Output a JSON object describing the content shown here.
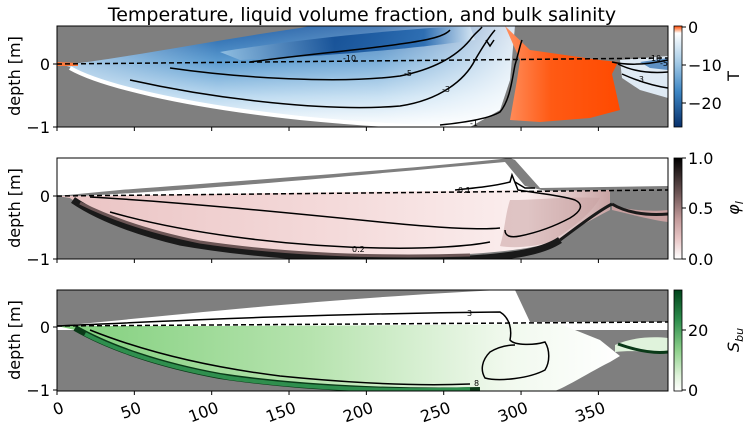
{
  "title": "Temperature, liquid volume fraction, and bulk salinity",
  "x_ticks": [
    "0",
    "50",
    "100",
    "150",
    "200",
    "250",
    "300",
    "350"
  ],
  "colors": {
    "background": "#7f7f7f",
    "temperature_cmap": [
      "#0b3f80",
      "#2f7ec0",
      "#a9cfe8",
      "#ffffff",
      "#ff6a2a",
      "#ff4a00"
    ],
    "liquid_cmap": [
      "#ffffff",
      "#e8b9b9",
      "#b58c8c",
      "#000000"
    ],
    "salinity_cmap": [
      "#ffffff",
      "#9fd89a",
      "#3f9a55",
      "#00441b"
    ]
  },
  "chart_data": [
    {
      "type": "heatmap",
      "name": "temperature",
      "title": "Temperature, liquid volume fraction, and bulk salinity",
      "ylabel": "depth [m]",
      "colorbar_label": "T",
      "xlim": [
        0,
        395
      ],
      "ylim": [
        -1,
        0.6
      ],
      "y_ticks": [
        "0",
        "−1"
      ],
      "colorbar_range": [
        -27,
        0
      ],
      "colorbar_ticks": [
        "0",
        "−10",
        "−20"
      ],
      "contour_labels": [
        "-10",
        "-5",
        "-3",
        "-1",
        "-10",
        "-5",
        "-3"
      ]
    },
    {
      "type": "heatmap",
      "name": "liquid volume fraction",
      "ylabel": "depth [m]",
      "colorbar_label": "φ",
      "colorbar_label_sub": "l",
      "xlim": [
        0,
        395
      ],
      "ylim": [
        -1,
        0.6
      ],
      "y_ticks": [
        "0",
        "−1"
      ],
      "colorbar_range": [
        0,
        1
      ],
      "colorbar_ticks": [
        "1.0",
        "0.5",
        "0.0"
      ],
      "contour_labels": [
        "0.1",
        "0.2"
      ]
    },
    {
      "type": "heatmap",
      "name": "bulk salinity",
      "ylabel": "depth [m]",
      "colorbar_label": "S",
      "colorbar_label_sub": "bu",
      "xlabel": "",
      "xlim": [
        0,
        395
      ],
      "ylim": [
        -1,
        0.6
      ],
      "y_ticks": [
        "0",
        "−1"
      ],
      "colorbar_range": [
        0,
        34
      ],
      "colorbar_ticks": [
        "20",
        "0"
      ],
      "contour_labels": [
        "3",
        "8"
      ]
    }
  ]
}
